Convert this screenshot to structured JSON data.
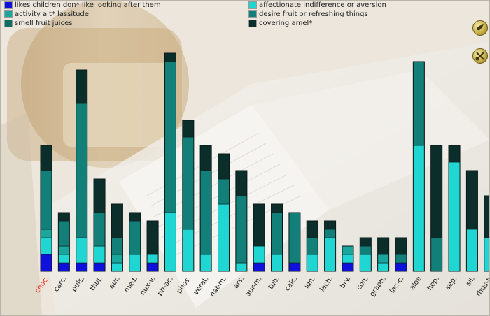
{
  "legend": [
    {
      "label": "likes children don* like looking after them",
      "color": "#1010dd"
    },
    {
      "label": "affectionate indifference or aversion",
      "color": "#1fd6d2"
    },
    {
      "label": "activity alt* lassitude",
      "color": "#1aa59d"
    },
    {
      "label": "desire fruit or refreshing things",
      "color": "#128079"
    },
    {
      "label": "smell fruit juices",
      "color": "#0f6d64"
    },
    {
      "label": "covering amel*",
      "color": "#0c2e2b"
    }
  ],
  "toolbar": {
    "icon_1": "dove-icon",
    "icon_2": "scissors-icon"
  },
  "chart_data": {
    "type": "bar",
    "stacked": true,
    "unit_px_note": "values are segment counts in units",
    "ylim": [
      0,
      26
    ],
    "highlight_category": "choc.",
    "highlight_color": "#e8241a",
    "categories": [
      "choc.",
      "carc.",
      "puls.",
      "thuj.",
      "aur.",
      "med.",
      "nux-v.",
      "ph-ac.",
      "phos.",
      "verat.",
      "nat-m.",
      "ars.",
      "aur-m.",
      "tub.",
      "calc.",
      "ign.",
      "lach.",
      "bry.",
      "con.",
      "graph.",
      "lac-c.",
      "aloe",
      "hep.",
      "sep.",
      "sil.",
      "rhus-t."
    ],
    "series": [
      {
        "name": "likes children don* like looking after them",
        "color": "#1010dd",
        "values": [
          2,
          1,
          1,
          1,
          0,
          0,
          1,
          0,
          0,
          0,
          0,
          0,
          1,
          0,
          1,
          0,
          0,
          1,
          0,
          0,
          1,
          0,
          0,
          0,
          0,
          0
        ]
      },
      {
        "name": "affectionate indifference or aversion",
        "color": "#1fd6d2",
        "values": [
          2,
          1,
          3,
          2,
          1,
          2,
          1,
          7,
          5,
          2,
          8,
          1,
          2,
          2,
          0,
          2,
          4,
          1,
          2,
          1,
          0,
          15,
          0,
          13,
          5,
          4
        ]
      },
      {
        "name": "activity alt* lassitude",
        "color": "#1aa59d",
        "values": [
          1,
          1,
          0,
          0,
          1,
          0,
          0,
          0,
          0,
          0,
          0,
          0,
          0,
          0,
          0,
          0,
          0,
          1,
          0,
          1,
          0,
          0,
          0,
          0,
          0,
          0
        ]
      },
      {
        "name": "desire fruit or refreshing things",
        "color": "#128079",
        "values": [
          7,
          3,
          16,
          4,
          2,
          4,
          0,
          18,
          11,
          10,
          3,
          8,
          0,
          5,
          6,
          2,
          1,
          0,
          1,
          0,
          1,
          10,
          4,
          0,
          0,
          0
        ]
      },
      {
        "name": "smell fruit juices",
        "color": "#0f6d64",
        "values": [
          0,
          0,
          0,
          0,
          0,
          0,
          0,
          0,
          0,
          0,
          0,
          0,
          0,
          0,
          0,
          0,
          0,
          0,
          0,
          0,
          0,
          0,
          0,
          0,
          0,
          0
        ]
      },
      {
        "name": "covering amel*",
        "color": "#0c2e2b",
        "values": [
          3,
          1,
          4,
          4,
          4,
          1,
          4,
          1,
          2,
          3,
          3,
          3,
          5,
          1,
          0,
          2,
          1,
          0,
          1,
          2,
          2,
          0,
          11,
          2,
          7,
          5
        ]
      }
    ]
  }
}
